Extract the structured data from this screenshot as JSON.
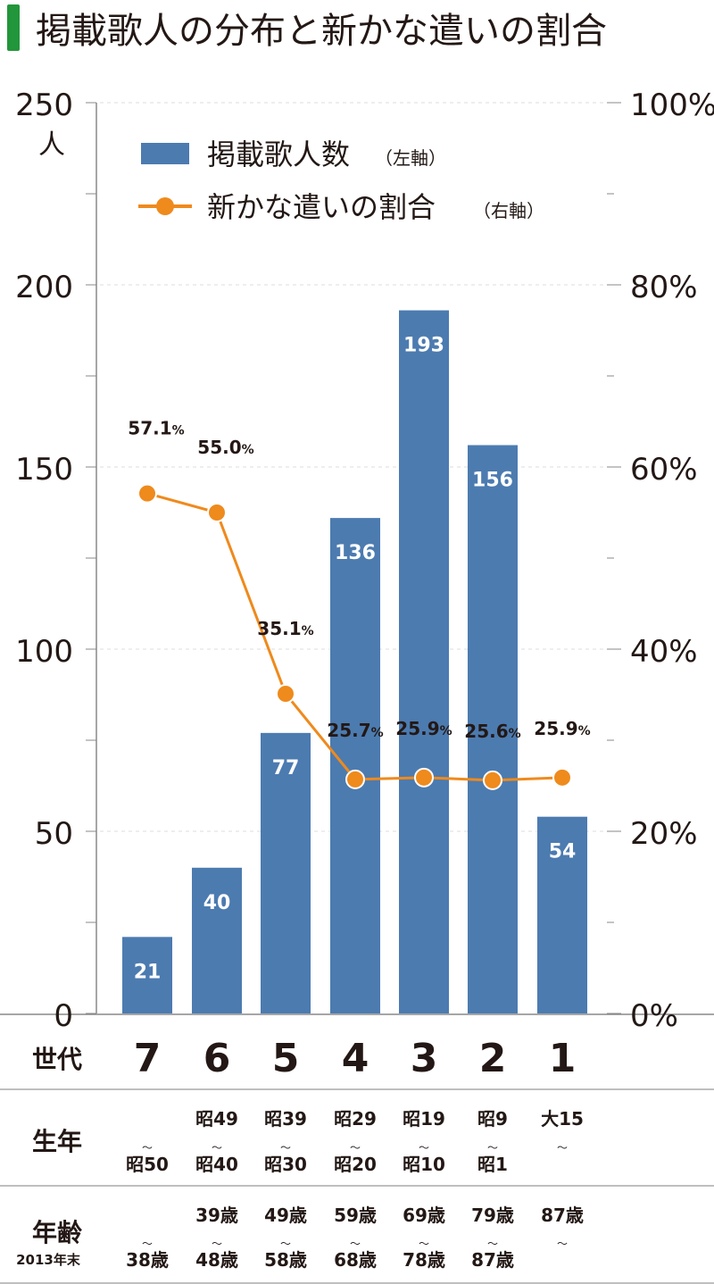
{
  "title": "掲載歌人の分布と新かな遣いの割合",
  "colors": {
    "title_bar": "#22963a",
    "bar": "#4c7bb0",
    "line": "#ef8a1c",
    "text": "#231815",
    "grid": "#cccccc"
  },
  "chart_data": {
    "type": "bar+line",
    "title": "掲載歌人の分布と新かな遣いの割合",
    "categories": [
      "7",
      "6",
      "5",
      "4",
      "3",
      "2",
      "1"
    ],
    "series": [
      {
        "name": "掲載歌人数",
        "axis_note": "（左軸）",
        "type": "bar",
        "axis": "left",
        "values": [
          21,
          40,
          77,
          136,
          193,
          156,
          54
        ]
      },
      {
        "name": "新かな遣いの割合",
        "axis_note": "（右軸）",
        "type": "line",
        "axis": "right",
        "values": [
          57.1,
          55.0,
          35.1,
          25.7,
          25.9,
          25.6,
          25.9
        ]
      }
    ],
    "left_axis": {
      "unit": "人",
      "ylim": [
        0,
        250
      ],
      "ticks": [
        "0",
        "50",
        "100",
        "150",
        "200",
        "250"
      ]
    },
    "right_axis": {
      "ylim": [
        0,
        100
      ],
      "ticks": [
        "0%",
        "20%",
        "40%",
        "60%",
        "80%",
        "100%"
      ]
    },
    "percent_labels": [
      "57.1",
      "55.0",
      "35.1",
      "25.7",
      "25.9",
      "25.6",
      "25.9"
    ],
    "percent_sign": "%",
    "legend_position": "top-left",
    "grid": true
  },
  "table": {
    "rows": [
      {
        "label": "世代",
        "cells": [
          "7",
          "6",
          "5",
          "4",
          "3",
          "2",
          "1"
        ]
      },
      {
        "label": "生年",
        "top": [
          "",
          "昭49",
          "昭39",
          "昭29",
          "昭19",
          "昭9",
          "大15"
        ],
        "bottom": [
          "昭50",
          "昭40",
          "昭30",
          "昭20",
          "昭10",
          "昭1",
          ""
        ]
      },
      {
        "label": "年齢",
        "sublabel": "2013年末",
        "top": [
          "",
          "39歳",
          "49歳",
          "59歳",
          "69歳",
          "79歳",
          "87歳"
        ],
        "bottom": [
          "38歳",
          "48歳",
          "58歳",
          "68歳",
          "78歳",
          "87歳",
          ""
        ]
      }
    ],
    "range_mark": "〜"
  }
}
